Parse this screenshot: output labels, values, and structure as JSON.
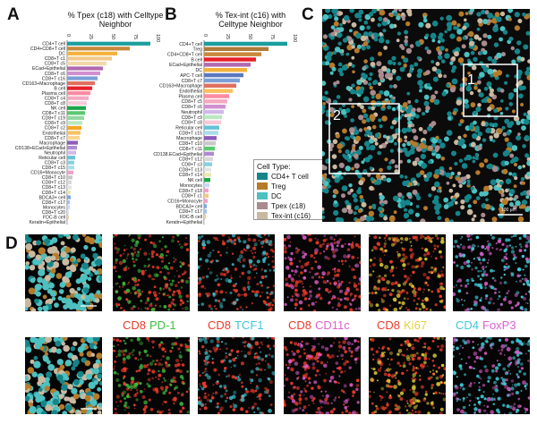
{
  "panels": {
    "a": "A",
    "b": "B",
    "c": "C",
    "d": "D"
  },
  "chart_data": [
    {
      "type": "bar",
      "orientation": "horizontal",
      "panel": "A",
      "title": "% Tpex (c18) with Celltype Neighbor",
      "xlim": [
        0,
        100
      ],
      "tick_labels": [
        "0",
        "25",
        "50",
        "75",
        "100"
      ],
      "categories": [
        "CD4+T cell",
        "CD4+CD8+T cell",
        "DC",
        "CD8+T c1",
        "CD8+T c5",
        "ECad+Epithelial",
        "CD8+T c6",
        "CD8+T c16",
        "CD163+Macrophage",
        "B cell",
        "Plasma cell",
        "CD8+T c4",
        "CD8+T c8",
        "NK cell",
        "CD8+T c11",
        "CD8+T c19",
        "CD8+T c9",
        "CD8+T c2",
        "Endothelial",
        "CD8+T c7",
        "Macrophage",
        "CD138+ECad+Epithelial",
        "Neutrophil",
        "Reticular cell",
        "CD8+T c3",
        "CD8+T c15",
        "CD16+Monocyte",
        "CD8+T c10",
        "CD8+T c12",
        "CD8+T c13",
        "CD8+T c14",
        "BDCA3+ cell",
        "CD8+T c17",
        "Monocytes",
        "CD8+T c20",
        "FDC-B cell",
        "Keratin+Epithelial"
      ],
      "values": [
        93,
        70,
        56,
        50,
        44,
        40,
        37,
        34,
        31,
        28,
        26,
        24,
        22,
        21,
        20,
        19,
        17,
        16,
        15,
        14,
        12,
        11,
        10,
        9,
        8,
        8,
        7,
        6,
        5,
        5,
        4,
        4,
        3,
        3,
        2,
        2,
        1
      ],
      "colors": [
        "#1a9e9e",
        "#c8883a",
        "#f3b23e",
        "#f0c98a",
        "#f3d9a8",
        "#b06ab0",
        "#d090d0",
        "#7ba0d8",
        "#e07060",
        "#e8202a",
        "#ff8aa0",
        "#f4a9c0",
        "#f7c8d8",
        "#1aa84a",
        "#5cc870",
        "#90d8a0",
        "#b8e8c0",
        "#f5a623",
        "#f8c060",
        "#f9d490",
        "#8e5bb8",
        "#b08ad0",
        "#d0b8e8",
        "#66c2d6",
        "#88d0e0",
        "#a8dce8",
        "#f0a0c8",
        "#c8c8c8",
        "#d8d8d8",
        "#e4e4e4",
        "#e8e8b0",
        "#7aa8e0",
        "#a0c0ec",
        "#c8d8f4",
        "#d8e4f8",
        "#f0d0a0",
        "#e0e0e0"
      ]
    },
    {
      "type": "bar",
      "orientation": "horizontal",
      "panel": "B",
      "title": "% Tex-int (c16) with Celltype Neighbor",
      "xlim": [
        0,
        100
      ],
      "tick_labels": [
        "0",
        "25",
        "50",
        "75",
        "100"
      ],
      "categories": [
        "CD4+T cell",
        "Treg",
        "CD4+CD8+T cell",
        "B cell",
        "ECad+Epithelial",
        "DC",
        "APC-T cell",
        "CD8+T c7",
        "CD163+Macrophage",
        "Endothelial",
        "Plasma cell",
        "CD8+T c5",
        "CD8+T c6",
        "Neutrophil",
        "CD8+T c9",
        "CD8+T c8",
        "Reticular cell",
        "CD8+T c15",
        "Macrophage",
        "CD8+T c10",
        "CD8+T c11",
        "CD138.ECad+Epithelial",
        "CD8+T c12",
        "CD8+T c3",
        "CD8+T c13",
        "CD8+T c14",
        "NK cell",
        "Monocytes",
        "CD8+T c18",
        "CD8+T c1",
        "CD16+Monocyte",
        "BDCA3+ cell",
        "CD8+T c17",
        "FDC-B cell",
        "Keratin+Epithelial"
      ],
      "values": [
        93,
        72,
        64,
        58,
        52,
        48,
        44,
        40,
        36,
        32,
        28,
        26,
        24,
        22,
        20,
        19,
        17,
        16,
        14,
        13,
        12,
        11,
        10,
        9,
        8,
        8,
        7,
        6,
        5,
        5,
        4,
        3,
        3,
        2,
        1
      ],
      "colors": [
        "#1a9e9e",
        "#b07a3a",
        "#c8883a",
        "#e8202a",
        "#b06ab0",
        "#f3b23e",
        "#5a78c0",
        "#7ba0d8",
        "#e07060",
        "#f8c060",
        "#ff8aa0",
        "#f4a9c0",
        "#d090d0",
        "#d0b8e8",
        "#b8e8c0",
        "#f7c8d8",
        "#66c2d6",
        "#a8dce8",
        "#8e5bb8",
        "#c8c8c8",
        "#5cc870",
        "#b08ad0",
        "#d8d8d8",
        "#88d0e0",
        "#e4e4e4",
        "#e8e8b0",
        "#1aa84a",
        "#c8d8f4",
        "#f0a0c8",
        "#f0c98a",
        "#f0a0c8",
        "#7aa8e0",
        "#a0c0ec",
        "#f0d0a0",
        "#e0e0e0"
      ]
    }
  ],
  "legend": {
    "title": "Cell Type:",
    "items": [
      {
        "label": "CD4+ T cell",
        "color": "#16858a"
      },
      {
        "label": "Treg",
        "color": "#b57a2a"
      },
      {
        "label": "DC",
        "color": "#4dc0c0"
      },
      {
        "label": "Tpex (c18)",
        "color": "#a98a8e"
      },
      {
        "label": "Tex-int (c16)",
        "color": "#c9b9a0"
      }
    ]
  },
  "map": {
    "roi_labels": [
      "1",
      "2"
    ],
    "scale_label": "100 μm"
  },
  "markers": [
    [
      {
        "text": "CD8",
        "color": "#e83a2a"
      },
      {
        "text": "PD-1",
        "color": "#3fbf3f"
      }
    ],
    [
      {
        "text": "CD8",
        "color": "#e83a2a"
      },
      {
        "text": "TCF1",
        "color": "#3fc7d6"
      }
    ],
    [
      {
        "text": "CD8",
        "color": "#e83a2a"
      },
      {
        "text": "CD11c",
        "color": "#e060d0"
      }
    ],
    [
      {
        "text": "CD8",
        "color": "#e83a2a"
      },
      {
        "text": "Ki67",
        "color": "#e6d23a"
      }
    ],
    [
      {
        "text": "CD4",
        "color": "#3fc7d6"
      },
      {
        "text": "FoxP3",
        "color": "#e060d0"
      }
    ]
  ]
}
